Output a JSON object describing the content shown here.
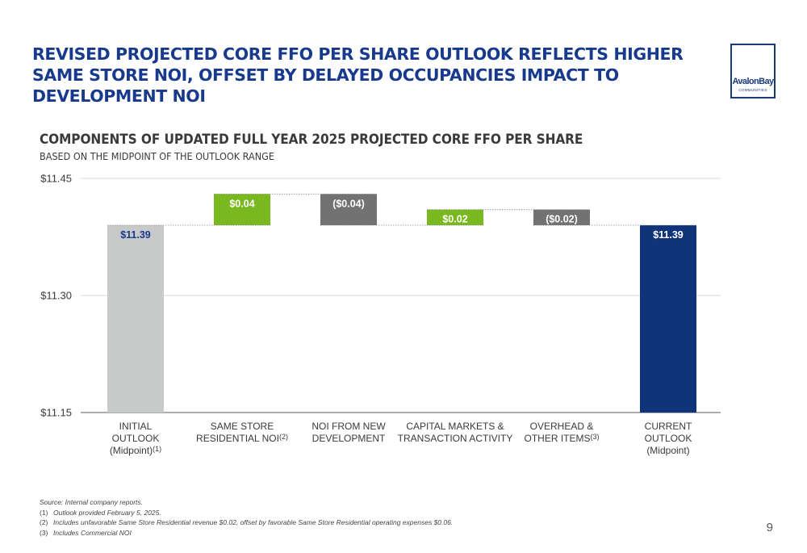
{
  "page": {
    "title": "REVISED PROJECTED CORE FFO PER SHARE OUTLOOK REFLECTS HIGHER SAME STORE NOI, OFFSET BY DELAYED OCCUPANCIES IMPACT TO DEVELOPMENT NOI",
    "logo_name": "AvalonBay",
    "logo_sub": "COMMUNITIES",
    "page_number": "9"
  },
  "chart_data": {
    "type": "bar",
    "subtype": "waterfall",
    "title": "COMPONENTS OF UPDATED FULL YEAR 2025 PROJECTED CORE FFO PER SHARE",
    "subtitle": "BASED ON THE MIDPOINT OF THE OUTLOOK RANGE",
    "ylim": [
      11.15,
      11.45
    ],
    "yticks": [
      {
        "value": 11.45,
        "label": "$11.45"
      },
      {
        "value": 11.3,
        "label": "$11.30"
      },
      {
        "value": 11.15,
        "label": "$11.15"
      }
    ],
    "grid": true,
    "categories": [
      {
        "lines": [
          "INITIAL",
          "OUTLOOK",
          "(Midpoint)"
        ],
        "note": "(1)",
        "note_line": 2
      },
      {
        "lines": [
          "SAME STORE",
          "RESIDENTIAL NOI"
        ],
        "note": "(2)",
        "note_line": 1
      },
      {
        "lines": [
          "NOI FROM NEW",
          "DEVELOPMENT"
        ],
        "note": "",
        "note_line": -1
      },
      {
        "lines": [
          "CAPITAL MARKETS &",
          "TRANSACTION ACTIVITY"
        ],
        "note": "",
        "note_line": -1
      },
      {
        "lines": [
          "OVERHEAD &",
          "OTHER ITEMS"
        ],
        "note": "(3)",
        "note_line": 1
      },
      {
        "lines": [
          "CURRENT",
          "OUTLOOK",
          "(Midpoint)"
        ],
        "note": "",
        "note_line": -1
      }
    ],
    "bars": [
      {
        "kind": "total",
        "start": 11.15,
        "end": 11.39,
        "label": "$11.39",
        "color": "#c8c9c9",
        "label_color": "#183a8c"
      },
      {
        "kind": "increase",
        "start": 11.39,
        "end": 11.43,
        "label": "$0.04",
        "color": "#7ab81f",
        "label_color": "#ffffff"
      },
      {
        "kind": "decrease",
        "start": 11.43,
        "end": 11.39,
        "label": "($0.04)",
        "color": "#727272",
        "label_color": "#ffffff"
      },
      {
        "kind": "increase",
        "start": 11.39,
        "end": 11.41,
        "label": "$0.02",
        "color": "#7ab81f",
        "label_color": "#ffffff"
      },
      {
        "kind": "decrease",
        "start": 11.41,
        "end": 11.39,
        "label": "($0.02)",
        "color": "#727272",
        "label_color": "#ffffff"
      },
      {
        "kind": "total",
        "start": 11.15,
        "end": 11.39,
        "label": "$11.39",
        "color": "#0f3479",
        "label_color": "#ffffff"
      }
    ]
  },
  "footnotes": [
    {
      "num": "",
      "text": "Source:  Internal company reports."
    },
    {
      "num": "(1)",
      "text": "Outlook provided February 5, 2025."
    },
    {
      "num": "(2)",
      "text": "Includes unfavorable Same Store Residential revenue $0.02, offset by favorable Same Store Residential operating expenses $0.06."
    },
    {
      "num": "(3)",
      "text": "Includes Commercial NOI"
    }
  ]
}
